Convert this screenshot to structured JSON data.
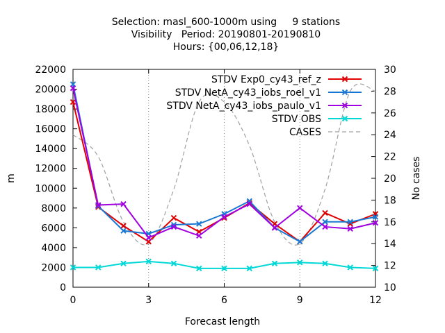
{
  "chart_data": {
    "type": "line",
    "title_lines": [
      "Selection: masl_600-1000m using     9 stations",
      "Visibility   Period: 20190801-20190810",
      "Hours: {00,06,12,18}"
    ],
    "xlabel": "Forecast length",
    "ylabel": "m",
    "y2label": "No cases",
    "xlim": [
      0,
      12
    ],
    "ylim": [
      0,
      22000
    ],
    "y2lim": [
      10,
      30
    ],
    "xticks": [
      0,
      3,
      6,
      9,
      12
    ],
    "yticks": [
      0,
      2000,
      4000,
      6000,
      8000,
      10000,
      12000,
      14000,
      16000,
      18000,
      20000,
      22000
    ],
    "y2ticks": [
      10,
      12,
      14,
      16,
      18,
      20,
      22,
      24,
      26,
      28,
      30
    ],
    "grid": "dotted at x ticks",
    "legend_position": "top-right",
    "x": [
      0,
      1,
      2,
      3,
      4,
      5,
      6,
      7,
      8,
      9,
      10,
      11,
      12
    ],
    "series": [
      {
        "name": "STDV Exp0_cy43_ref_z",
        "color": "#e00000",
        "axis": "y",
        "marker": "x",
        "values": [
          18700,
          8100,
          6200,
          4600,
          7000,
          5600,
          7000,
          8500,
          6400,
          4600,
          7500,
          6400,
          7400
        ]
      },
      {
        "name": "STDV NetA_cy43_iobs_roel_v1",
        "color": "#1a78d4",
        "axis": "y",
        "marker": "x",
        "values": [
          20500,
          8200,
          5700,
          5400,
          6300,
          6400,
          7400,
          8700,
          6000,
          4600,
          6600,
          6600,
          7100
        ]
      },
      {
        "name": "STDV NetA_cy43_iobs_paulo_v1",
        "color": "#a000e0",
        "axis": "y",
        "marker": "x",
        "values": [
          20100,
          8300,
          8400,
          5000,
          6100,
          5200,
          7100,
          8400,
          6000,
          8000,
          6100,
          5900,
          6500
        ]
      },
      {
        "name": "STDV OBS",
        "color": "#00d8d8",
        "axis": "y",
        "marker": "x",
        "values": [
          2000,
          2000,
          2400,
          2600,
          2400,
          1900,
          1900,
          1900,
          2400,
          2500,
          2400,
          2000,
          1900
        ]
      },
      {
        "name": "CASES",
        "color": "#a0a0a0",
        "axis": "y2",
        "marker": "none",
        "dashed": true,
        "values": [
          24,
          22,
          16,
          14,
          19,
          27,
          27,
          23,
          16,
          14,
          19,
          28,
          28
        ]
      }
    ]
  }
}
